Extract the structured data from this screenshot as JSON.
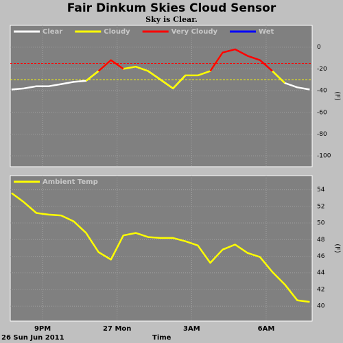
{
  "chart_data": [
    {
      "type": "line",
      "title": "Fair Dinkum Skies Cloud Sensor",
      "subtitle": "Sky is Clear.",
      "ylabel": "(F)",
      "x": [
        -1.25,
        -0.75,
        -0.25,
        0.25,
        0.75,
        1.25,
        1.75,
        2.25,
        2.75,
        3.25,
        3.75,
        4.25,
        4.75,
        5.25,
        5.75,
        6.25,
        6.75,
        7.25,
        7.75,
        8.25,
        8.75,
        9.25,
        9.75,
        10.25,
        10.75
      ],
      "series": [
        {
          "name": "Clear",
          "color": "#ffffff",
          "values": [
            -39,
            -38,
            -36,
            -36,
            -34,
            -32,
            -31,
            -22,
            null,
            null,
            null,
            -22,
            -30,
            -38,
            -26,
            null,
            null,
            null,
            null,
            null,
            null,
            -22,
            -33,
            -37,
            -39
          ]
        },
        {
          "name": "Cloudy",
          "color": "#ffff00",
          "values": [
            null,
            null,
            null,
            null,
            null,
            null,
            -31,
            -22,
            -12,
            -20,
            -18,
            -22,
            -30,
            -38,
            -26,
            -26,
            -22,
            -5,
            null,
            null,
            null,
            -22,
            -33,
            null,
            null
          ]
        },
        {
          "name": "Very Cloudy",
          "color": "#ff0000",
          "values": [
            null,
            null,
            null,
            null,
            null,
            null,
            null,
            -22,
            -12,
            -20,
            null,
            null,
            null,
            null,
            null,
            null,
            -22,
            -5,
            -2,
            -8,
            -12,
            -22,
            null,
            null,
            null
          ]
        },
        {
          "name": "Wet",
          "color": "#0000ff",
          "values": [
            null,
            null,
            null,
            null,
            null,
            null,
            null,
            null,
            null,
            null,
            null,
            null,
            null,
            null,
            null,
            null,
            null,
            null,
            null,
            null,
            null,
            null,
            null,
            null,
            null
          ]
        }
      ],
      "thresholds": [
        {
          "value": -15,
          "color": "#ff0000"
        },
        {
          "value": -30,
          "color": "#ffff00"
        }
      ],
      "xlim": [
        -1.3,
        10.85
      ],
      "xticks": [
        0,
        3,
        6,
        9
      ],
      "ylim": [
        -110,
        20
      ],
      "yticks": [
        0,
        -20,
        -40,
        -60,
        -80,
        -100
      ],
      "grid": true
    },
    {
      "type": "line",
      "ylabel": "(F)",
      "xlabel": "Time",
      "date_label": "26 Sun Jun 2011",
      "x": [
        -1.25,
        -0.75,
        -0.25,
        0.25,
        0.75,
        1.25,
        1.75,
        2.25,
        2.75,
        3.25,
        3.75,
        4.25,
        4.75,
        5.25,
        5.75,
        6.25,
        6.75,
        7.25,
        7.75,
        8.25,
        8.75,
        9.25,
        9.75,
        10.25,
        10.75
      ],
      "series": [
        {
          "name": "Ambient Temp",
          "color": "#ffff00",
          "values": [
            53.6,
            52.5,
            51.2,
            51.0,
            50.9,
            50.2,
            48.8,
            46.5,
            45.6,
            48.5,
            48.8,
            48.3,
            48.2,
            48.2,
            47.8,
            47.3,
            45.2,
            46.8,
            47.4,
            46.4,
            45.9,
            44.1,
            42.6,
            40.7,
            40.5
          ]
        }
      ],
      "xlim": [
        -1.3,
        10.85
      ],
      "xticks": [
        {
          "value": 0,
          "label": "9PM"
        },
        {
          "value": 3,
          "label": "27 Mon"
        },
        {
          "value": 6,
          "label": "3AM"
        },
        {
          "value": 9,
          "label": "6AM"
        }
      ],
      "ylim": [
        38.2,
        55.7
      ],
      "yticks": [
        40,
        42,
        44,
        46,
        48,
        50,
        52,
        54
      ],
      "grid": true
    }
  ]
}
